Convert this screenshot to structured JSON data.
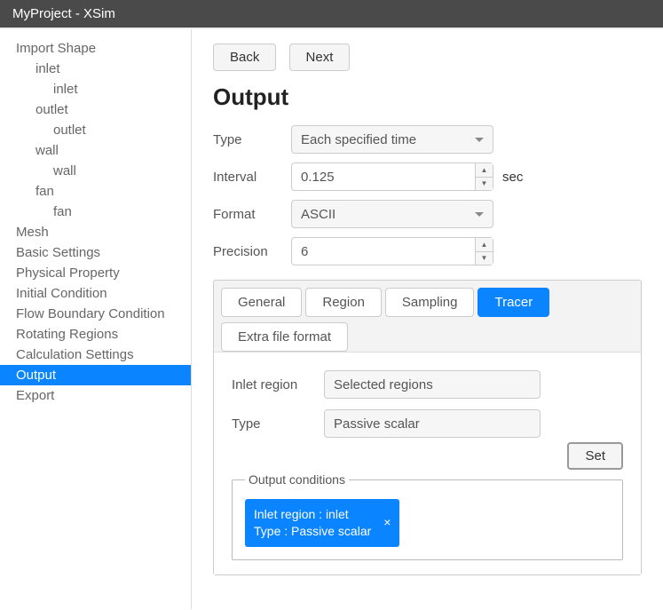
{
  "window": {
    "title": "MyProject - XSim"
  },
  "sidebar": {
    "items": [
      {
        "label": "Import Shape",
        "indent": 0
      },
      {
        "label": "inlet",
        "indent": 1
      },
      {
        "label": "inlet",
        "indent": 2
      },
      {
        "label": "outlet",
        "indent": 1
      },
      {
        "label": "outlet",
        "indent": 2
      },
      {
        "label": "wall",
        "indent": 1
      },
      {
        "label": "wall",
        "indent": 2
      },
      {
        "label": "fan",
        "indent": 1
      },
      {
        "label": "fan",
        "indent": 2
      },
      {
        "label": "Mesh",
        "indent": 0
      },
      {
        "label": "Basic Settings",
        "indent": 0
      },
      {
        "label": "Physical Property",
        "indent": 0
      },
      {
        "label": "Initial Condition",
        "indent": 0
      },
      {
        "label": "Flow Boundary Condition",
        "indent": 0
      },
      {
        "label": "Rotating Regions",
        "indent": 0
      },
      {
        "label": "Calculation Settings",
        "indent": 0
      },
      {
        "label": "Output",
        "indent": 0,
        "active": true
      },
      {
        "label": "Export",
        "indent": 0
      }
    ]
  },
  "nav": {
    "back": "Back",
    "next": "Next"
  },
  "page": {
    "title": "Output"
  },
  "form": {
    "type_label": "Type",
    "type_value": "Each specified time",
    "interval_label": "Interval",
    "interval_value": "0.125",
    "interval_unit": "sec",
    "format_label": "Format",
    "format_value": "ASCII",
    "precision_label": "Precision",
    "precision_value": "6"
  },
  "tabs": {
    "general": "General",
    "region": "Region",
    "sampling": "Sampling",
    "tracer": "Tracer",
    "extra": "Extra file format"
  },
  "tracer": {
    "inlet_region_label": "Inlet region",
    "inlet_region_value": "Selected regions",
    "type_label": "Type",
    "type_value": "Passive scalar",
    "set_btn": "Set",
    "conditions_legend": "Output conditions",
    "chip_text": "Inlet region : inlet\nType : Passive scalar",
    "chip_close": "×"
  },
  "colors": {
    "accent": "#0a84ff",
    "titlebar": "#4a4a4a"
  }
}
